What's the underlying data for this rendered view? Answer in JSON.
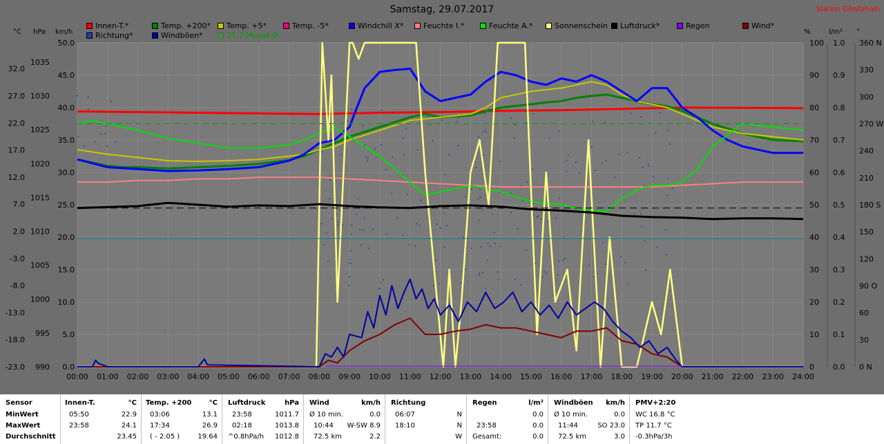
{
  "header": {
    "title": "Samstag, 29.07.2017",
    "station": "Station Gönitzhain"
  },
  "legend": [
    {
      "label": "Innen-T.*",
      "color": "#ff0000"
    },
    {
      "label": "Temp. +200*",
      "color": "#008000"
    },
    {
      "label": "Temp. +5*",
      "color": "#c8c800"
    },
    {
      "label": "Temp. -5*",
      "color": "#ff0080"
    },
    {
      "label": "Windchill X*",
      "color": "#0000ff"
    },
    {
      "label": "Feuchte I.*",
      "color": "#ff8080"
    },
    {
      "label": "Feuchte A.*",
      "color": "#00e000"
    },
    {
      "label": "Sonnenschein",
      "color": "#ffff80"
    },
    {
      "label": "Luftdruck*",
      "color": "#000000"
    },
    {
      "label": "Regen",
      "color": "#8000ff"
    },
    {
      "label": "Wind*",
      "color": "#800000"
    },
    {
      "label": "Richtung*",
      "color": "#2040a0"
    },
    {
      "label": "Windböen*",
      "color": "#0000a0"
    },
    {
      "label": "21.7 Monat-Ø",
      "color": "#00a000"
    }
  ],
  "axes": {
    "units_left": [
      "°C",
      "hPa",
      "km/h"
    ],
    "units_right": [
      "%",
      "l/m²",
      "°"
    ],
    "temp_ticks": [
      "32.0",
      "27.0",
      "22.0",
      "17.0",
      "12.0",
      "7.0",
      "2.0",
      "-3.0",
      "-8.0",
      "-13.0",
      "-18.0",
      "-23.0"
    ],
    "hpa_ticks": [
      "1035",
      "1030",
      "1025",
      "1020",
      "1015",
      "1010",
      "1005",
      "1000",
      "995",
      "990"
    ],
    "kmh_ticks": [
      "50.0",
      "45.0",
      "40.0",
      "35.0",
      "30.0",
      "25.0",
      "20.0",
      "15.0",
      "10.0",
      "5.0",
      "0.0"
    ],
    "pct_ticks": [
      "100",
      "90",
      "80",
      "70",
      "60",
      "50",
      "40",
      "30",
      "20",
      "10",
      "0"
    ],
    "rain_ticks": [
      "1.0",
      "0.9",
      "0.8",
      "0.7",
      "0.6",
      "0.5",
      "0.4",
      "0.3",
      "0.2",
      "0.1",
      "0.0"
    ],
    "deg_ticks": [
      "360 N",
      "330",
      "300",
      "270 W",
      "240",
      "210",
      "180 S",
      "150",
      "120",
      "90 O",
      "60",
      "30",
      "0 N"
    ],
    "x_ticks": [
      "00:00",
      "01:00",
      "02:00",
      "03:00",
      "04:00",
      "05:00",
      "06:00",
      "07:00",
      "08:00",
      "09:00",
      "10:00",
      "11:00",
      "12:00",
      "13:00",
      "14:00",
      "15:00",
      "16:00",
      "17:00",
      "18:00",
      "19:00",
      "20:00",
      "21:00",
      "22:00",
      "23:00",
      "24:00"
    ]
  },
  "chart_data": {
    "type": "line",
    "title": "Samstag, 29.07.2017",
    "x_unit": "hour",
    "xlim": [
      0,
      24
    ],
    "ylim_kmh": [
      0,
      50
    ],
    "series": [
      {
        "name": "Innen-T.*",
        "axis": "kmh",
        "color": "#ff0000",
        "x": [
          0,
          2,
          4,
          6,
          8,
          10,
          12,
          14,
          16,
          18,
          20,
          24
        ],
        "y": [
          39.4,
          39.3,
          39.2,
          39.1,
          39.0,
          39.2,
          39.3,
          39.5,
          39.6,
          39.8,
          40.0,
          39.9
        ]
      },
      {
        "name": "Temp. +200*",
        "axis": "kmh",
        "color": "#008000",
        "x": [
          0,
          0.5,
          1,
          1.5,
          2,
          3,
          4,
          5,
          6,
          7,
          7.5,
          8,
          8.5,
          9,
          10,
          11,
          11.5,
          12,
          13,
          14,
          15,
          15.5,
          16,
          16.5,
          17,
          17.5,
          18,
          18.5,
          19,
          19.5,
          20,
          21,
          22,
          23,
          24
        ],
        "y": [
          32.0,
          31.5,
          31.0,
          30.8,
          30.8,
          30.6,
          30.8,
          31.0,
          31.3,
          31.9,
          32.5,
          33.5,
          34.5,
          35.5,
          37.0,
          38.5,
          39.0,
          38.5,
          38.8,
          40.0,
          40.5,
          40.8,
          41.0,
          41.5,
          41.8,
          42.0,
          41.5,
          41.0,
          40.5,
          40.2,
          39.5,
          37.5,
          36.0,
          35.0,
          34.8
        ]
      },
      {
        "name": "Temp. +5*",
        "axis": "kmh",
        "color": "#c8c800",
        "x": [
          0,
          1,
          2,
          3,
          4,
          5,
          6,
          7,
          7.5,
          8,
          8.5,
          9,
          10,
          11,
          12,
          13,
          13.5,
          14,
          14.5,
          15,
          16,
          16.5,
          17,
          17.5,
          18,
          18.5,
          19,
          19.5,
          20,
          21,
          22,
          23,
          24
        ],
        "y": [
          33.5,
          32.8,
          32.3,
          31.8,
          31.7,
          31.8,
          32.0,
          32.5,
          32.8,
          33.5,
          34.0,
          35.0,
          36.5,
          38.0,
          38.5,
          39.0,
          40.0,
          41.5,
          42.0,
          42.5,
          43.0,
          43.5,
          44.0,
          43.5,
          42.0,
          41.0,
          40.5,
          40.0,
          39.0,
          37.0,
          36.0,
          35.5,
          35.0
        ]
      },
      {
        "name": "Windchill X*",
        "axis": "kmh",
        "color": "#0000ff",
        "x": [
          0,
          1,
          2,
          3,
          4,
          5,
          6,
          7,
          7.5,
          8,
          8.5,
          9,
          9.2,
          9.5,
          10,
          10.5,
          11,
          11.5,
          12,
          12.5,
          13,
          13.5,
          14,
          14.5,
          15,
          15.5,
          16,
          16.5,
          17,
          17.5,
          18,
          18.5,
          19,
          19.5,
          20,
          20.5,
          21,
          21.5,
          22,
          23,
          24
        ],
        "y": [
          32.0,
          30.8,
          30.5,
          30.2,
          30.3,
          30.5,
          30.8,
          31.8,
          32.8,
          34.5,
          35.0,
          37.0,
          39.5,
          43.0,
          45.5,
          45.8,
          46.0,
          42.5,
          41.0,
          41.5,
          42.0,
          44.0,
          45.5,
          45.0,
          44.0,
          43.5,
          44.5,
          44.0,
          45.0,
          44.0,
          42.5,
          41.0,
          43.0,
          43.0,
          40.0,
          38.5,
          36.5,
          35.0,
          34.0,
          33.0,
          33.0
        ]
      },
      {
        "name": "Feuchte I.*",
        "axis": "pct",
        "color": "#ff8080",
        "x": [
          0,
          1,
          2,
          3,
          4,
          5,
          6,
          7,
          8,
          9,
          10,
          11,
          12,
          13,
          14,
          15,
          16,
          17,
          18,
          19,
          20,
          21,
          22,
          23,
          24
        ],
        "y": [
          57,
          57,
          57.5,
          57.5,
          58,
          58,
          58.5,
          58.5,
          58.5,
          58,
          57.5,
          57,
          56.5,
          56,
          55.5,
          55.5,
          55.5,
          55.5,
          55.5,
          55.5,
          56,
          56.5,
          57,
          57,
          57
        ]
      },
      {
        "name": "Feuchte A.*",
        "axis": "pct",
        "color": "#00e000",
        "x": [
          0,
          0.5,
          1,
          2,
          3,
          4,
          5,
          6,
          7,
          7.5,
          8,
          8.5,
          9,
          9.5,
          10,
          10.5,
          11,
          11.5,
          12,
          13,
          14,
          15,
          16,
          17,
          17.5,
          18,
          18.5,
          19,
          19.5,
          20,
          20.5,
          21,
          22,
          23,
          24
        ],
        "y": [
          75,
          76,
          75,
          73,
          70.5,
          69,
          67.5,
          67.5,
          68.5,
          70,
          72,
          74,
          71,
          68,
          65,
          61,
          57,
          53,
          54,
          56,
          54,
          51,
          50,
          48,
          48,
          52,
          54.5,
          56,
          56,
          57,
          61,
          68,
          75,
          74,
          73
        ]
      },
      {
        "name": "Sonnenschein",
        "axis": "pct",
        "color": "#ffff80",
        "x": [
          0,
          7.9,
          8.1,
          8.3,
          8.4,
          8.6,
          8.8,
          9,
          9.1,
          9.3,
          9.5,
          9.7,
          10,
          11.2,
          11.5,
          11.8,
          12,
          12.1,
          12.3,
          12.5,
          12.7,
          13,
          13.3,
          13.6,
          13.9,
          14.2,
          14.5,
          14.8,
          15.2,
          15.5,
          15.8,
          16.2,
          16.5,
          16.9,
          17.3,
          17.6,
          18,
          18.5,
          19,
          19.3,
          19.6,
          20,
          24
        ],
        "y": [
          0,
          0,
          100,
          70,
          90,
          20,
          60,
          100,
          100,
          95,
          100,
          100,
          100,
          100,
          60,
          30,
          10,
          0,
          30,
          0,
          20,
          60,
          70,
          50,
          100,
          100,
          100,
          100,
          10,
          60,
          20,
          30,
          5,
          70,
          0,
          40,
          0,
          0,
          20,
          10,
          30,
          0,
          0
        ]
      },
      {
        "name": "Luftdruck*",
        "axis": "kmh",
        "color": "#000000",
        "x": [
          0,
          2,
          3,
          4,
          5,
          6,
          7,
          8,
          9,
          10,
          11,
          12,
          13,
          14,
          15,
          16,
          17,
          18,
          19,
          20,
          21,
          22,
          23,
          24
        ],
        "y": [
          24.5,
          24.8,
          25.3,
          25.0,
          24.7,
          24.9,
          24.8,
          25.1,
          24.8,
          24.6,
          24.5,
          24.8,
          24.9,
          24.7,
          24.3,
          24.1,
          23.8,
          23.3,
          23.1,
          23.0,
          22.8,
          22.9,
          22.9,
          22.8
        ]
      },
      {
        "name": "Wind*",
        "axis": "kmh",
        "color": "#800000",
        "x": [
          0,
          8,
          8.3,
          8.6,
          9,
          9.5,
          10,
          10.5,
          11,
          11.5,
          12,
          12.5,
          13,
          13.5,
          14,
          14.5,
          15,
          15.5,
          16,
          16.5,
          17,
          17.5,
          18,
          18.5,
          19,
          19.5,
          20,
          24
        ],
        "y": [
          0,
          0,
          1.0,
          0.6,
          2.5,
          4.0,
          5.0,
          6.5,
          7.5,
          5.0,
          5.0,
          5.5,
          5.8,
          6.5,
          6.0,
          6.0,
          5.5,
          5.0,
          4.5,
          5.5,
          5.5,
          6.0,
          4.0,
          3.5,
          2.0,
          1.5,
          0,
          0
        ]
      },
      {
        "name": "Windböen*",
        "axis": "kmh",
        "color": "#0000a0",
        "x": [
          0,
          0.5,
          0.6,
          0.7,
          1,
          4,
          4.2,
          4.3,
          8,
          8.2,
          8.4,
          8.6,
          8.8,
          9,
          9.4,
          9.6,
          9.8,
          10,
          10.2,
          10.4,
          10.6,
          10.8,
          11,
          11.2,
          11.4,
          11.6,
          11.8,
          12,
          12.3,
          12.6,
          12.9,
          13.2,
          13.5,
          13.8,
          14.1,
          14.4,
          14.7,
          15,
          15.3,
          15.6,
          15.9,
          16.2,
          16.5,
          16.8,
          17.1,
          17.4,
          17.7,
          18,
          18.3,
          18.6,
          18.9,
          19.2,
          19.5,
          19.8,
          20,
          24
        ],
        "y": [
          0,
          0,
          1.0,
          0.5,
          0,
          0,
          1.2,
          0.3,
          0,
          2.0,
          1.5,
          3.0,
          1.5,
          5.0,
          4.5,
          8.5,
          6.0,
          11.0,
          8.0,
          12.5,
          9.0,
          11.5,
          13.5,
          10.5,
          12.0,
          9.0,
          10.5,
          8.0,
          9.5,
          7.0,
          10.0,
          8.5,
          11.5,
          9.0,
          10.0,
          11.5,
          8.5,
          10.0,
          8.0,
          9.5,
          7.5,
          10.0,
          8.0,
          9.0,
          10.0,
          9.0,
          7.0,
          5.5,
          4.5,
          3.0,
          4.0,
          2.0,
          3.0,
          1.0,
          0,
          0
        ]
      },
      {
        "name": "21.7 Monat-Ø",
        "axis": "kmh",
        "color": "#00a000",
        "x": [
          0,
          24
        ],
        "y": [
          37.5,
          37.5
        ]
      },
      {
        "name": "Regen",
        "axis": "kmh",
        "color": "#8000ff",
        "x": [
          8.2,
          20
        ],
        "y": [
          0.1,
          0.1
        ]
      }
    ]
  },
  "summary": {
    "sensor": {
      "header": "Sensor",
      "rows": [
        "MinWert",
        "MaxWert",
        "Durchschnitt"
      ]
    },
    "innen": {
      "header": "Innen-T.",
      "unit": "°C",
      "rows": [
        [
          "05:50",
          "22.9"
        ],
        [
          "23:58",
          "24.1"
        ],
        [
          "",
          "23.45"
        ]
      ]
    },
    "temp200": {
      "header": "Temp. +200",
      "unit": "°C",
      "rows": [
        [
          "03:06",
          "13.1"
        ],
        [
          "17:34",
          "26.9"
        ],
        [
          "( - 2.05 )",
          "19.64"
        ]
      ]
    },
    "luftdruck": {
      "header": "Luftdruck",
      "unit": "hPa",
      "rows": [
        [
          "23:58",
          "1011.7"
        ],
        [
          "02:18",
          "1013.8"
        ],
        [
          "^0.8hPa/h",
          "1012.8"
        ]
      ]
    },
    "wind": {
      "header": "Wind",
      "unit": "km/h",
      "rows": [
        [
          "Ø 10 min.",
          "0.0"
        ],
        [
          "10:44",
          "W-SW 8.9"
        ],
        [
          "72.5 km",
          "2.2"
        ]
      ]
    },
    "richtung": {
      "header": "Richtung",
      "rows": [
        [
          "06:07",
          "N"
        ],
        [
          "18:10",
          "N"
        ],
        [
          "",
          "W"
        ]
      ]
    },
    "regen": {
      "header": "Regen",
      "unit": "l/m²",
      "rows": [
        [
          "",
          "0.0"
        ],
        [
          "23:58",
          "0.0"
        ],
        [
          "Gesamt:",
          "0.0"
        ]
      ]
    },
    "windboeen": {
      "header": "Windböen",
      "unit": "km/h",
      "rows": [
        [
          "Ø 10 min.",
          "0.0"
        ],
        [
          "11:44",
          "SO 23.0"
        ],
        [
          "72.5 km",
          "3.0"
        ]
      ]
    },
    "pmv": {
      "header": "PMV+2:20",
      "rows": [
        "WC 16.8 °C",
        "TP 11.7 °C",
        "-0.3hPa/3h"
      ]
    }
  }
}
